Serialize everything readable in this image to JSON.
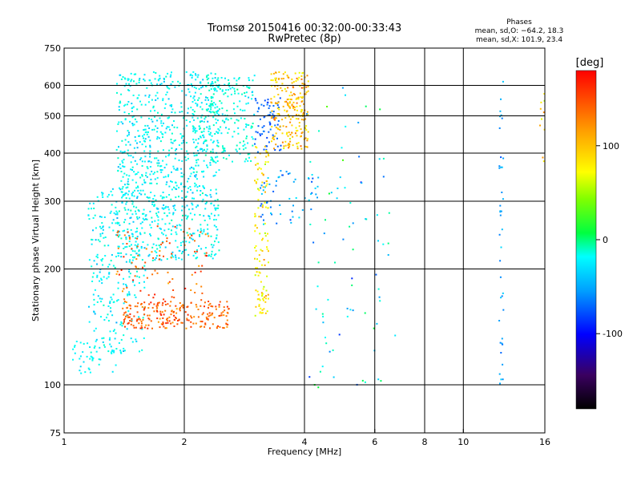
{
  "chart_data": {
    "type": "scatter",
    "title_line1": "Tromsø 20150416 00:32:00-00:33:43",
    "title_line2": "RwPretec (8p)",
    "xlabel": "Frequency [MHz]",
    "ylabel": "Stationary phase Virtual Height [km]",
    "x_scale": "log",
    "y_scale": "log",
    "xlim": [
      1,
      16
    ],
    "ylim": [
      75,
      750
    ],
    "x_ticks": [
      1,
      2,
      4,
      6,
      8,
      10,
      16
    ],
    "x_tick_labels": [
      "1",
      "2",
      "4",
      "6",
      "8",
      "10",
      "16"
    ],
    "x_gridlines": [
      2,
      4,
      6,
      8,
      10
    ],
    "y_ticks": [
      75,
      100,
      200,
      300,
      400,
      500,
      600,
      750
    ],
    "y_tick_labels": [
      "75",
      "100",
      "200",
      "300",
      "400",
      "500",
      "600",
      "750"
    ],
    "y_gridlines": [
      100,
      200,
      300,
      400,
      500,
      600
    ],
    "grid": true,
    "stats": {
      "heading": "Phases",
      "line_o": "mean, sd,O: −64.2, 18.3",
      "line_x": "mean, sd,X: 101.9, 23.4"
    },
    "colorbar": {
      "label": "[deg]",
      "range": [
        -180,
        180
      ],
      "ticks": [
        100,
        0,
        -100
      ],
      "tick_labels": [
        "100",
        "0",
        "-100"
      ]
    },
    "clusters": [
      {
        "name": "low-freq blue trace",
        "x_range": [
          1.35,
          2.45
        ],
        "y_range": [
          210,
          650
        ],
        "phase_mean": -60,
        "phase_sd": 15,
        "count": 900
      },
      {
        "name": "lower blue trace",
        "x_range": [
          1.15,
          1.6
        ],
        "y_range": [
          120,
          330
        ],
        "phase_mean": -60,
        "phase_sd": 15,
        "count": 260
      },
      {
        "name": "orange low layer",
        "x_range": [
          1.4,
          2.6
        ],
        "y_range": [
          140,
          165
        ],
        "phase_mean": 150,
        "phase_sd": 15,
        "count": 230
      },
      {
        "name": "orange scatter",
        "x_range": [
          1.35,
          2.3
        ],
        "y_range": [
          165,
          260
        ],
        "phase_mean": 150,
        "phase_sd": 20,
        "count": 90
      },
      {
        "name": "blue tail",
        "x_range": [
          1.05,
          1.35
        ],
        "y_range": [
          105,
          130
        ],
        "phase_mean": -60,
        "phase_sd": 10,
        "count": 45
      },
      {
        "name": "blue F trace",
        "x_range": [
          2.1,
          3.0
        ],
        "y_range": [
          380,
          640
        ],
        "phase_mean": -50,
        "phase_sd": 20,
        "count": 240
      },
      {
        "name": "deep blue trace",
        "x_range": [
          3.0,
          3.5
        ],
        "y_range": [
          400,
          560
        ],
        "phase_mean": -110,
        "phase_sd": 10,
        "count": 70
      },
      {
        "name": "yellow orange trace",
        "x_range": [
          3.3,
          4.1
        ],
        "y_range": [
          410,
          650
        ],
        "phase_mean": 120,
        "phase_sd": 20,
        "count": 230
      },
      {
        "name": "yellow column",
        "x_range": [
          3.0,
          3.25
        ],
        "y_range": [
          150,
          420
        ],
        "phase_mean": 105,
        "phase_sd": 20,
        "count": 120
      },
      {
        "name": "mid blue scatter",
        "x_range": [
          3.1,
          4.5
        ],
        "y_range": [
          260,
          360
        ],
        "phase_mean": -90,
        "phase_sd": 25,
        "count": 60
      },
      {
        "name": "sparse mid",
        "x_range": [
          4.0,
          6.8
        ],
        "y_range": [
          95,
          640
        ],
        "phase_mean": -60,
        "phase_sd": 60,
        "count": 80
      },
      {
        "name": "vertical line 12.5 MHz",
        "x_range": [
          12.3,
          12.6
        ],
        "y_range": [
          90,
          620
        ],
        "phase_mean": -90,
        "phase_sd": 15,
        "count": 40
      },
      {
        "name": "right edge",
        "x_range": [
          15.5,
          16
        ],
        "y_range": [
          380,
          640
        ],
        "phase_mean": 110,
        "phase_sd": 30,
        "count": 10
      }
    ]
  }
}
